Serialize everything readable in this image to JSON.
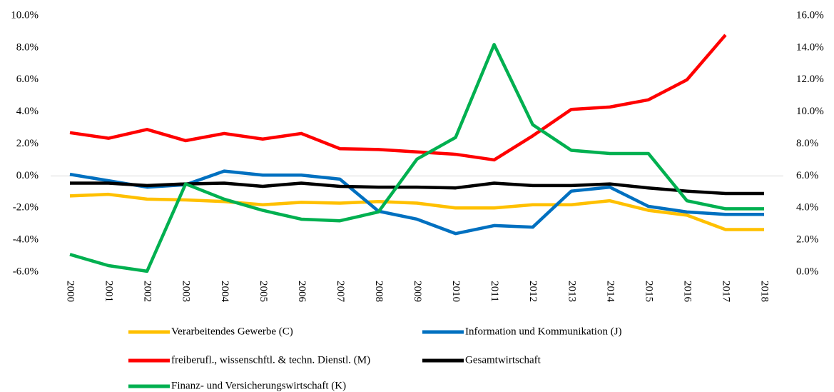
{
  "chart_data": {
    "type": "line",
    "categories": [
      "2000",
      "2001",
      "2002",
      "2003",
      "2004",
      "2005",
      "2006",
      "2007",
      "2008",
      "2009",
      "2010",
      "2011",
      "2012",
      "2013",
      "2014",
      "2015",
      "2016",
      "2017",
      "2018"
    ],
    "series": [
      {
        "name": "Verarbeitendes Gewerbe (C)",
        "color": "#ffc000",
        "values": [
          -1.25,
          -1.15,
          -1.45,
          -1.5,
          -1.6,
          -1.8,
          -1.65,
          -1.7,
          -1.6,
          -1.7,
          -2.0,
          -2.0,
          -1.8,
          -1.8,
          -1.55,
          -2.15,
          -2.45,
          -3.35,
          -3.35
        ]
      },
      {
        "name": "Information und Kommunikation (J)",
        "color": "#0070c0",
        "values": [
          0.1,
          -0.3,
          -0.7,
          -0.55,
          0.3,
          0.05,
          0.05,
          -0.2,
          -2.2,
          -2.7,
          -3.6,
          -3.1,
          -3.2,
          -0.95,
          -0.7,
          -1.9,
          -2.25,
          -2.4,
          -2.4
        ]
      },
      {
        "name": "freiberufl., wissenschftl. & techn. Dienstl. (M)",
        "color": "#ff0000",
        "values": [
          2.7,
          2.35,
          2.9,
          2.2,
          2.65,
          2.3,
          2.65,
          1.7,
          1.65,
          1.5,
          1.35,
          1.0,
          2.5,
          4.15,
          4.3,
          4.75,
          6.0,
          8.8,
          null
        ]
      },
      {
        "name": "Gesamtwirtschaft",
        "color": "#000000",
        "values": [
          -0.45,
          -0.45,
          -0.6,
          -0.5,
          -0.45,
          -0.65,
          -0.45,
          -0.65,
          -0.7,
          -0.7,
          -0.75,
          -0.45,
          -0.6,
          -0.6,
          -0.5,
          -0.75,
          -0.95,
          -1.1,
          -1.1
        ]
      },
      {
        "name": "Finanz- und Versicherungswirtschaft (K)",
        "color": "#00b050",
        "axis": "y2",
        "values": [
          1.1,
          0.4,
          0.05,
          5.5,
          4.55,
          3.85,
          3.3,
          3.2,
          3.75,
          7.05,
          8.4,
          14.2,
          9.2,
          7.6,
          7.4,
          7.4,
          4.45,
          3.95,
          3.95
        ]
      }
    ],
    "ylim": [
      -6,
      10
    ],
    "yticks": [
      {
        "value": -6,
        "label": "-6.0%"
      },
      {
        "value": -4,
        "label": "-4.0%"
      },
      {
        "value": -2,
        "label": "-2.0%"
      },
      {
        "value": 0,
        "label": "0.0%"
      },
      {
        "value": 2,
        "label": "2.0%"
      },
      {
        "value": 4,
        "label": "4.0%"
      },
      {
        "value": 6,
        "label": "6.0%"
      },
      {
        "value": 8,
        "label": "8.0%"
      },
      {
        "value": 10,
        "label": "10.0%"
      }
    ],
    "y2lim": [
      0,
      16
    ],
    "y2ticks": [
      {
        "value": 0,
        "label": "0.0%"
      },
      {
        "value": 2,
        "label": "2.0%"
      },
      {
        "value": 4,
        "label": "4.0%"
      },
      {
        "value": 6,
        "label": "6.0%"
      },
      {
        "value": 8,
        "label": "8.0%"
      },
      {
        "value": 10,
        "label": "10.0%"
      },
      {
        "value": 12,
        "label": "12.0%"
      },
      {
        "value": 14,
        "label": "14.0%"
      },
      {
        "value": 16,
        "label": "16.0%"
      }
    ],
    "grid": false
  }
}
